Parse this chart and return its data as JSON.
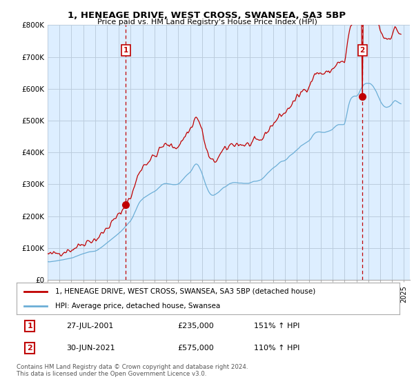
{
  "title": "1, HENEAGE DRIVE, WEST CROSS, SWANSEA, SA3 5BP",
  "subtitle": "Price paid vs. HM Land Registry's House Price Index (HPI)",
  "legend_line1": "1, HENEAGE DRIVE, WEST CROSS, SWANSEA, SA3 5BP (detached house)",
  "legend_line2": "HPI: Average price, detached house, Swansea",
  "point1_label": "1",
  "point1_date": "27-JUL-2001",
  "point1_price": "£235,000",
  "point1_hpi": "151% ↑ HPI",
  "point2_label": "2",
  "point2_date": "30-JUN-2021",
  "point2_price": "£575,000",
  "point2_hpi": "110% ↑ HPI",
  "footer": "Contains HM Land Registry data © Crown copyright and database right 2024.\nThis data is licensed under the Open Government Licence v3.0.",
  "hpi_color": "#6baed6",
  "price_color": "#c00000",
  "vline_color": "#c00000",
  "background_color": "#ffffff",
  "plot_bg_color": "#ddeeff",
  "grid_color": "#bbccdd",
  "xlim": [
    1995.0,
    2025.5
  ],
  "ylim": [
    0,
    800000
  ],
  "yticks": [
    0,
    100000,
    200000,
    300000,
    400000,
    500000,
    600000,
    700000,
    800000
  ],
  "ytick_labels": [
    "£0",
    "£100K",
    "£200K",
    "£300K",
    "£400K",
    "£500K",
    "£600K",
    "£700K",
    "£800K"
  ],
  "xtick_years": [
    1995,
    1996,
    1997,
    1998,
    1999,
    2000,
    2001,
    2002,
    2003,
    2004,
    2005,
    2006,
    2007,
    2008,
    2009,
    2010,
    2011,
    2012,
    2013,
    2014,
    2015,
    2016,
    2017,
    2018,
    2019,
    2020,
    2021,
    2022,
    2023,
    2024,
    2025
  ],
  "p1_x": 2001.57,
  "p1_y": 235000,
  "p2_x": 2021.5,
  "p2_y": 575000,
  "hpi_data_x": [
    1995.0,
    1995.08,
    1995.17,
    1995.25,
    1995.33,
    1995.42,
    1995.5,
    1995.58,
    1995.67,
    1995.75,
    1995.83,
    1995.92,
    1996.0,
    1996.08,
    1996.17,
    1996.25,
    1996.33,
    1996.42,
    1996.5,
    1996.58,
    1996.67,
    1996.75,
    1996.83,
    1996.92,
    1997.0,
    1997.08,
    1997.17,
    1997.25,
    1997.33,
    1997.42,
    1997.5,
    1997.58,
    1997.67,
    1997.75,
    1997.83,
    1997.92,
    1998.0,
    1998.08,
    1998.17,
    1998.25,
    1998.33,
    1998.42,
    1998.5,
    1998.58,
    1998.67,
    1998.75,
    1998.83,
    1998.92,
    1999.0,
    1999.08,
    1999.17,
    1999.25,
    1999.33,
    1999.42,
    1999.5,
    1999.58,
    1999.67,
    1999.75,
    1999.83,
    1999.92,
    2000.0,
    2000.08,
    2000.17,
    2000.25,
    2000.33,
    2000.42,
    2000.5,
    2000.58,
    2000.67,
    2000.75,
    2000.83,
    2000.92,
    2001.0,
    2001.08,
    2001.17,
    2001.25,
    2001.33,
    2001.42,
    2001.5,
    2001.58,
    2001.67,
    2001.75,
    2001.83,
    2001.92,
    2002.0,
    2002.08,
    2002.17,
    2002.25,
    2002.33,
    2002.42,
    2002.5,
    2002.58,
    2002.67,
    2002.75,
    2002.83,
    2002.92,
    2003.0,
    2003.08,
    2003.17,
    2003.25,
    2003.33,
    2003.42,
    2003.5,
    2003.58,
    2003.67,
    2003.75,
    2003.83,
    2003.92,
    2004.0,
    2004.08,
    2004.17,
    2004.25,
    2004.33,
    2004.42,
    2004.5,
    2004.58,
    2004.67,
    2004.75,
    2004.83,
    2004.92,
    2005.0,
    2005.08,
    2005.17,
    2005.25,
    2005.33,
    2005.42,
    2005.5,
    2005.58,
    2005.67,
    2005.75,
    2005.83,
    2005.92,
    2006.0,
    2006.08,
    2006.17,
    2006.25,
    2006.33,
    2006.42,
    2006.5,
    2006.58,
    2006.67,
    2006.75,
    2006.83,
    2006.92,
    2007.0,
    2007.08,
    2007.17,
    2007.25,
    2007.33,
    2007.42,
    2007.5,
    2007.58,
    2007.67,
    2007.75,
    2007.83,
    2007.92,
    2008.0,
    2008.08,
    2008.17,
    2008.25,
    2008.33,
    2008.42,
    2008.5,
    2008.58,
    2008.67,
    2008.75,
    2008.83,
    2008.92,
    2009.0,
    2009.08,
    2009.17,
    2009.25,
    2009.33,
    2009.42,
    2009.5,
    2009.58,
    2009.67,
    2009.75,
    2009.83,
    2009.92,
    2010.0,
    2010.08,
    2010.17,
    2010.25,
    2010.33,
    2010.42,
    2010.5,
    2010.58,
    2010.67,
    2010.75,
    2010.83,
    2010.92,
    2011.0,
    2011.08,
    2011.17,
    2011.25,
    2011.33,
    2011.42,
    2011.5,
    2011.58,
    2011.67,
    2011.75,
    2011.83,
    2011.92,
    2012.0,
    2012.08,
    2012.17,
    2012.25,
    2012.33,
    2012.42,
    2012.5,
    2012.58,
    2012.67,
    2012.75,
    2012.83,
    2012.92,
    2013.0,
    2013.08,
    2013.17,
    2013.25,
    2013.33,
    2013.42,
    2013.5,
    2013.58,
    2013.67,
    2013.75,
    2013.83,
    2013.92,
    2014.0,
    2014.08,
    2014.17,
    2014.25,
    2014.33,
    2014.42,
    2014.5,
    2014.58,
    2014.67,
    2014.75,
    2014.83,
    2014.92,
    2015.0,
    2015.08,
    2015.17,
    2015.25,
    2015.33,
    2015.42,
    2015.5,
    2015.58,
    2015.67,
    2015.75,
    2015.83,
    2015.92,
    2016.0,
    2016.08,
    2016.17,
    2016.25,
    2016.33,
    2016.42,
    2016.5,
    2016.58,
    2016.67,
    2016.75,
    2016.83,
    2016.92,
    2017.0,
    2017.08,
    2017.17,
    2017.25,
    2017.33,
    2017.42,
    2017.5,
    2017.58,
    2017.67,
    2017.75,
    2017.83,
    2017.92,
    2018.0,
    2018.08,
    2018.17,
    2018.25,
    2018.33,
    2018.42,
    2018.5,
    2018.58,
    2018.67,
    2018.75,
    2018.83,
    2018.92,
    2019.0,
    2019.08,
    2019.17,
    2019.25,
    2019.33,
    2019.42,
    2019.5,
    2019.58,
    2019.67,
    2019.75,
    2019.83,
    2019.92,
    2020.0,
    2020.08,
    2020.17,
    2020.25,
    2020.33,
    2020.42,
    2020.5,
    2020.58,
    2020.67,
    2020.75,
    2020.83,
    2020.92,
    2021.0,
    2021.08,
    2021.17,
    2021.25,
    2021.33,
    2021.42,
    2021.5,
    2021.58,
    2021.67,
    2021.75,
    2021.83,
    2021.92,
    2022.0,
    2022.08,
    2022.17,
    2022.25,
    2022.33,
    2022.42,
    2022.5,
    2022.58,
    2022.67,
    2022.75,
    2022.83,
    2022.92,
    2023.0,
    2023.08,
    2023.17,
    2023.25,
    2023.33,
    2023.42,
    2023.5,
    2023.58,
    2023.67,
    2023.75,
    2023.83,
    2023.92,
    2024.0,
    2024.08,
    2024.17,
    2024.25,
    2024.33,
    2024.42,
    2024.5,
    2024.58,
    2024.67,
    2024.75
  ],
  "hpi_data_y": [
    57000,
    56800,
    56600,
    57000,
    57400,
    57800,
    58200,
    58600,
    59000,
    59600,
    60200,
    60800,
    61400,
    61800,
    62200,
    62800,
    63400,
    64000,
    64600,
    65200,
    65800,
    66400,
    67000,
    67600,
    68200,
    69200,
    70200,
    71500,
    72800,
    74000,
    75200,
    76400,
    77600,
    78800,
    80000,
    81200,
    82400,
    83200,
    84000,
    85000,
    86000,
    87000,
    87800,
    88200,
    88600,
    89000,
    89400,
    89800,
    90200,
    91500,
    93000,
    95000,
    97000,
    99000,
    101000,
    103500,
    106000,
    108500,
    111000,
    113500,
    116000,
    118500,
    121000,
    123500,
    126000,
    128500,
    131000,
    133500,
    136000,
    138500,
    141000,
    143500,
    146000,
    149000,
    152000,
    155000,
    158000,
    161500,
    165000,
    168500,
    172000,
    175500,
    179000,
    182500,
    186000,
    191000,
    197000,
    204000,
    211000,
    218000,
    225000,
    232000,
    239000,
    244000,
    248000,
    251000,
    254000,
    257000,
    259000,
    261000,
    263000,
    265000,
    267000,
    269000,
    271000,
    273000,
    274500,
    276000,
    277500,
    279500,
    282000,
    285000,
    288000,
    291000,
    294000,
    297000,
    299500,
    301000,
    302000,
    302500,
    302500,
    302000,
    301500,
    301000,
    300500,
    300000,
    299500,
    299000,
    299000,
    299000,
    299500,
    300000,
    301000,
    303000,
    306000,
    309500,
    313000,
    316500,
    320000,
    323500,
    327000,
    330000,
    332500,
    335000,
    338000,
    342000,
    347000,
    353000,
    358000,
    362000,
    364000,
    363000,
    360000,
    355000,
    349000,
    342000,
    334000,
    325000,
    315000,
    306000,
    297000,
    289000,
    282000,
    276000,
    271000,
    268000,
    266000,
    265500,
    266000,
    267500,
    269500,
    271500,
    273500,
    276000,
    279000,
    282000,
    285000,
    288000,
    290000,
    291500,
    293000,
    295000,
    297500,
    300000,
    302000,
    303000,
    304000,
    305000,
    305500,
    305500,
    305500,
    305000,
    305000,
    304000,
    304000,
    304000,
    304000,
    303500,
    303000,
    303000,
    303000,
    303000,
    303000,
    303000,
    304000,
    305000,
    306500,
    308000,
    309000,
    309500,
    309500,
    310000,
    310500,
    311500,
    312500,
    313500,
    315500,
    317500,
    320500,
    323500,
    327000,
    330500,
    334000,
    337000,
    340000,
    343000,
    346000,
    349000,
    351500,
    353500,
    355500,
    358000,
    361000,
    364000,
    367000,
    369500,
    371500,
    372500,
    373000,
    374000,
    375500,
    377500,
    380500,
    384000,
    387500,
    390500,
    392500,
    394500,
    397000,
    400000,
    403000,
    406000,
    408500,
    411000,
    414000,
    417500,
    420500,
    422500,
    424500,
    426500,
    428500,
    430500,
    432500,
    434500,
    436500,
    439500,
    443500,
    448500,
    453500,
    457500,
    460500,
    462500,
    463500,
    464500,
    464500,
    464500,
    464000,
    463500,
    463000,
    463000,
    463000,
    464000,
    465000,
    466000,
    467000,
    468000,
    469500,
    471000,
    473500,
    476500,
    479500,
    482500,
    484500,
    486500,
    487500,
    487500,
    487500,
    487500,
    487500,
    487500,
    490000,
    501000,
    516000,
    531000,
    546000,
    558000,
    566000,
    571000,
    574000,
    576000,
    577000,
    577000,
    577000,
    579000,
    583000,
    589000,
    596000,
    602000,
    607000,
    611000,
    614000,
    616000,
    617000,
    617000,
    617000,
    617000,
    616000,
    614000,
    611000,
    607000,
    602000,
    597000,
    591000,
    584000,
    577000,
    570000,
    563000,
    557000,
    552000,
    548000,
    545000,
    543000,
    542000,
    542000,
    543000,
    544000,
    546000,
    549000,
    553000,
    557000,
    561000,
    563000,
    562000,
    560000,
    558000,
    556000,
    554000,
    553000
  ]
}
